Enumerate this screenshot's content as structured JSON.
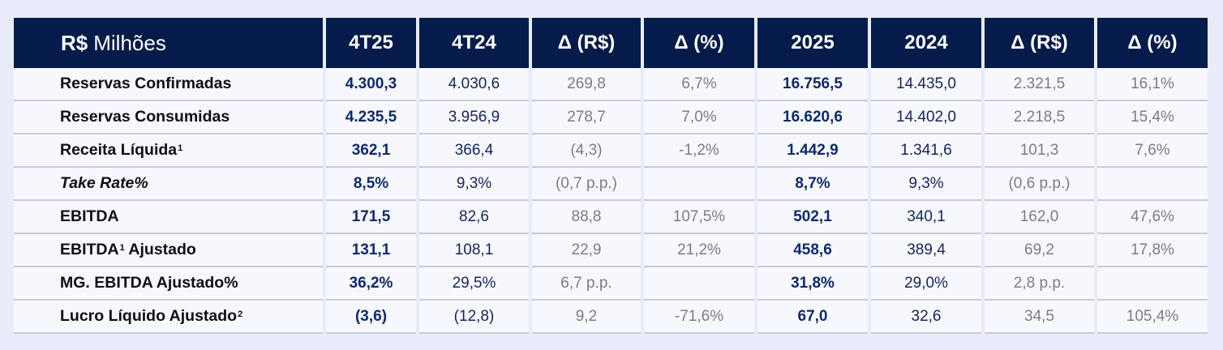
{
  "table": {
    "header": {
      "unit_prefix": "R$",
      "unit_label": "Milhões",
      "columns": [
        "4T25",
        "4T24",
        "Δ (R$)",
        "Δ (%)",
        "2025",
        "2024",
        "Δ (R$)",
        "Δ (%)"
      ]
    },
    "rows": [
      {
        "label": "Reservas Confirmadas",
        "sup": "",
        "italic": false,
        "values": [
          "4.300,3",
          "4.030,6",
          "269,8",
          "6,7%",
          "16.756,5",
          "14.435,0",
          "2.321,5",
          "16,1%"
        ]
      },
      {
        "label": "Reservas Consumidas",
        "sup": "",
        "italic": false,
        "values": [
          "4.235,5",
          "3.956,9",
          "278,7",
          "7,0%",
          "16.620,6",
          "14.402,0",
          "2.218,5",
          "15,4%"
        ]
      },
      {
        "label": "Receita Líquida",
        "sup": "1",
        "italic": false,
        "values": [
          "362,1",
          "366,4",
          "(4,3)",
          "-1,2%",
          "1.442,9",
          "1.341,6",
          "101,3",
          "7,6%"
        ]
      },
      {
        "label": "Take Rate%",
        "sup": "",
        "italic": true,
        "values": [
          "8,5%",
          "9,3%",
          "(0,7 p.p.)",
          "",
          "8,7%",
          "9,3%",
          "(0,6 p.p.)",
          ""
        ]
      },
      {
        "label": "EBITDA",
        "sup": "",
        "italic": false,
        "values": [
          "171,5",
          "82,6",
          "88,8",
          "107,5%",
          "502,1",
          "340,1",
          "162,0",
          "47,6%"
        ]
      },
      {
        "label": "EBITDA",
        "sup": "1",
        "label_suffix": " Ajustado",
        "italic": false,
        "values": [
          "131,1",
          "108,1",
          "22,9",
          "21,2%",
          "458,6",
          "389,4",
          "69,2",
          "17,8%"
        ]
      },
      {
        "label": "MG. EBITDA Ajustado%",
        "sup": "",
        "italic": false,
        "values": [
          "36,2%",
          "29,5%",
          "6,7 p.p.",
          "",
          "31,8%",
          "29,0%",
          "2,8 p.p.",
          ""
        ]
      },
      {
        "label": "Lucro Líquido Ajustado",
        "sup": "2",
        "italic": false,
        "values": [
          "(3,6)",
          "(12,8)",
          "9,2",
          "-71,6%",
          "67,0",
          "32,6",
          "34,5",
          "105,4%"
        ]
      }
    ]
  },
  "colors": {
    "header_bg": "#051c4a",
    "header_text": "#ffffff",
    "highlight_value": "#0f2a6b",
    "prior_value": "#15265a",
    "delta_value": "#7a7d86",
    "row_bg": "#f6f8fd",
    "page_bg": "#e8ebf8"
  }
}
